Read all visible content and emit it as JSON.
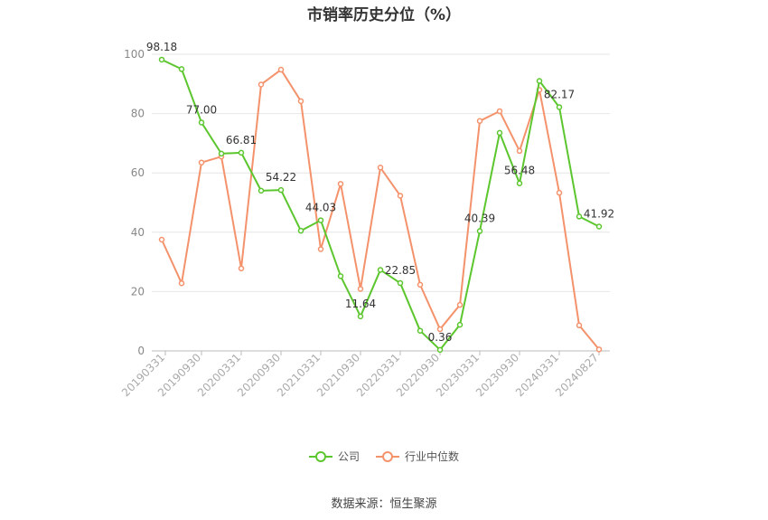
{
  "title": "市销率历史分位（%）",
  "source": "数据来源：恒生聚源",
  "legend": [
    {
      "label": "公司",
      "color": "#5cc62e"
    },
    {
      "label": "行业中位数",
      "color": "#f4926c"
    }
  ],
  "chart_data": {
    "type": "line",
    "title": "市销率历史分位（%）",
    "ylim": [
      0,
      100
    ],
    "yticks": [
      0,
      20,
      40,
      60,
      80,
      100
    ],
    "xtick_labels": [
      "20190331",
      "20190930",
      "20200331",
      "20200930",
      "20210331",
      "20210930",
      "20220331",
      "20220930",
      "20230331",
      "20230930",
      "20240331",
      "20240827"
    ],
    "grid": true,
    "legend_position": "bottom",
    "series": [
      {
        "name": "公司",
        "color": "#5cc62e",
        "values": [
          98.18,
          95.0,
          77.0,
          66.5,
          66.81,
          54.0,
          54.22,
          40.5,
          44.03,
          25.2,
          11.64,
          27.3,
          22.85,
          6.8,
          0.36,
          8.8,
          40.39,
          73.5,
          56.48,
          91.0,
          82.17,
          45.3,
          41.92
        ],
        "labels": {
          "0": "98.18",
          "2": "77.00",
          "4": "66.81",
          "6": "54.22",
          "8": "44.03",
          "10": "11.64",
          "12": "22.85",
          "14": "0.36",
          "16": "40.39",
          "18": "56.48",
          "20": "82.17",
          "22": "41.92"
        }
      },
      {
        "name": "行业中位数",
        "color": "#f4926c",
        "values": [
          37.5,
          22.8,
          63.5,
          65.5,
          27.8,
          89.8,
          94.8,
          84.2,
          34.3,
          56.3,
          20.9,
          61.8,
          52.3,
          22.3,
          7.3,
          15.5,
          77.5,
          80.8,
          67.4,
          88.0,
          53.3,
          8.6,
          0.5
        ]
      }
    ]
  }
}
